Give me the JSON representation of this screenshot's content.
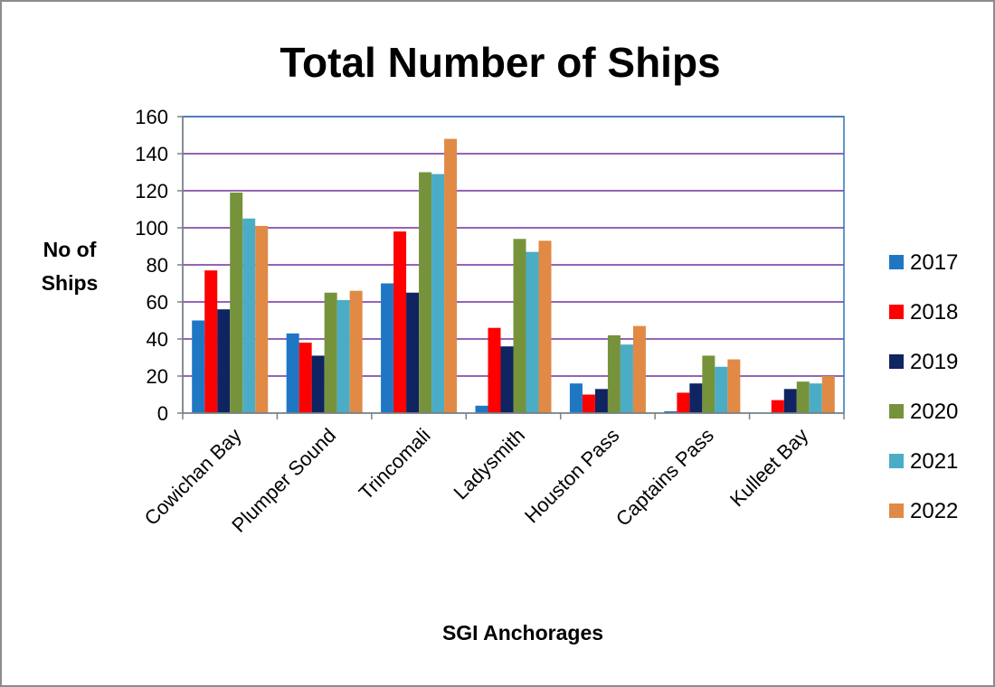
{
  "chart_data": {
    "type": "bar",
    "title": "Total Number of Ships",
    "xlabel": "SGI Anchorages",
    "ylabel": [
      "No of",
      "Ships"
    ],
    "categories": [
      "Cowichan Bay",
      "Plumper Sound",
      "Trincomali",
      "Ladysmith",
      "Houston Pass",
      "Captains Pass",
      "Kulleet Bay"
    ],
    "ylim": [
      0,
      160
    ],
    "yticks": [
      "0",
      "20",
      "40",
      "60",
      "80",
      "100",
      "120",
      "140",
      "160"
    ],
    "grid": true,
    "legend_position": "right",
    "series": [
      {
        "name": "2017",
        "color": "#1f77c4",
        "values": [
          50,
          43,
          70,
          4,
          16,
          1,
          0
        ]
      },
      {
        "name": "2018",
        "color": "#ff0000",
        "values": [
          77,
          38,
          98,
          46,
          10,
          11,
          7
        ]
      },
      {
        "name": "2019",
        "color": "#0f2460",
        "values": [
          56,
          31,
          65,
          36,
          13,
          16,
          13
        ]
      },
      {
        "name": "2020",
        "color": "#76933c",
        "values": [
          119,
          65,
          130,
          94,
          42,
          31,
          17
        ]
      },
      {
        "name": "2021",
        "color": "#4bacc6",
        "values": [
          105,
          61,
          129,
          87,
          37,
          25,
          16
        ]
      },
      {
        "name": "2022",
        "color": "#e08a45",
        "values": [
          101,
          66,
          148,
          93,
          47,
          29,
          20
        ]
      }
    ],
    "colors": {
      "gridline": "#7030a0",
      "plot_border": "#2e75b6",
      "axis": "#808080"
    }
  }
}
